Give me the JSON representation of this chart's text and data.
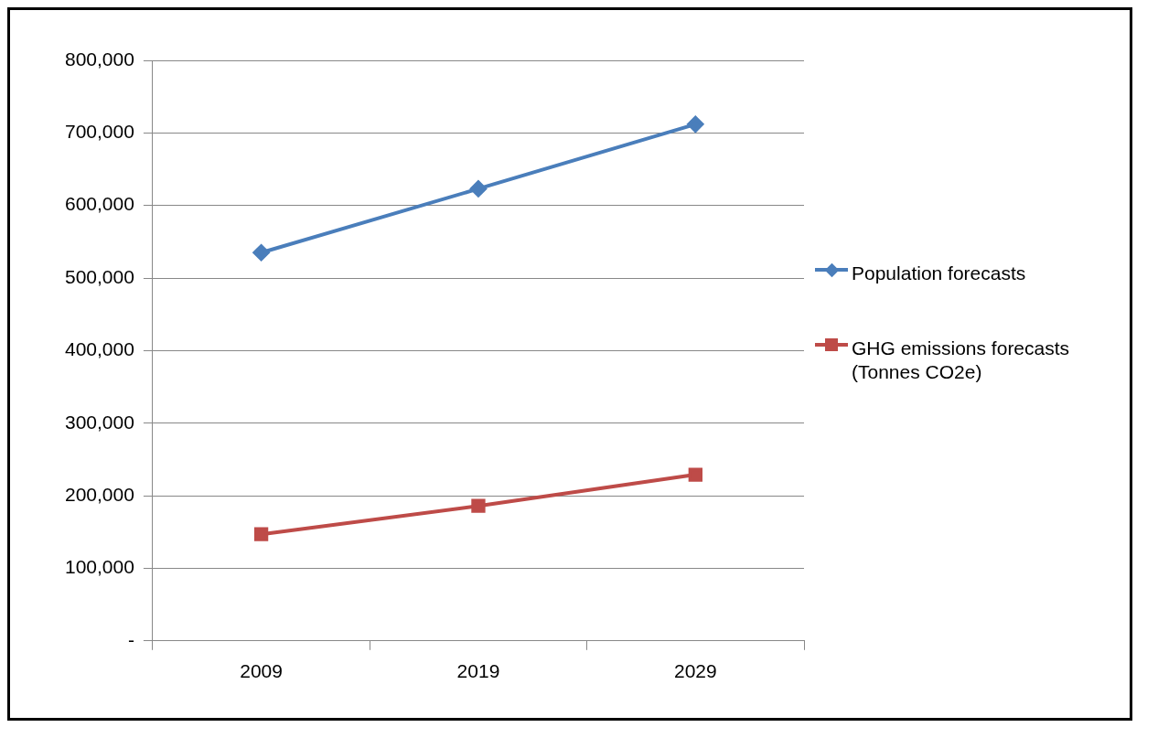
{
  "chart_data": {
    "type": "line",
    "categories": [
      "2009",
      "2019",
      "2029"
    ],
    "series": [
      {
        "name": "Population forecasts",
        "color": "#4a7ebb",
        "marker": "diamond",
        "values": [
          535000,
          623000,
          712000
        ]
      },
      {
        "name": "GHG emissions forecasts (Tonnes CO2e)",
        "color": "#be4b48",
        "marker": "square",
        "values": [
          147000,
          186000,
          229000
        ]
      }
    ],
    "ylim": [
      0,
      800000
    ],
    "yticks": [
      {
        "value": 0,
        "label": "-"
      },
      {
        "value": 100000,
        "label": "100,000"
      },
      {
        "value": 200000,
        "label": "200,000"
      },
      {
        "value": 300000,
        "label": "300,000"
      },
      {
        "value": 400000,
        "label": "400,000"
      },
      {
        "value": 500000,
        "label": "500,000"
      },
      {
        "value": 600000,
        "label": "600,000"
      },
      {
        "value": 700000,
        "label": "700,000"
      },
      {
        "value": 800000,
        "label": "800,000"
      }
    ],
    "grid": "y",
    "legend": "right",
    "line_style": "solid"
  }
}
